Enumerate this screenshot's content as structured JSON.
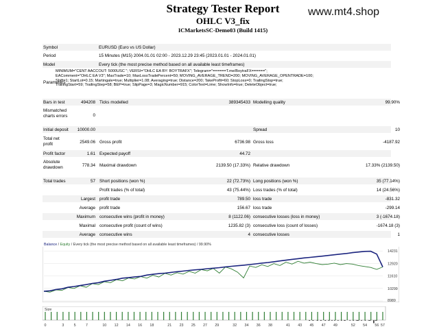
{
  "header": {
    "title": "Strategy Tester Report",
    "subtitle": "OHLC V3_fix",
    "server": "ICMarketsSC-Demo03 (Build 1415)",
    "watermark": "www.mt4.shop"
  },
  "info": {
    "symbol_label": "Symbol",
    "symbol_value": "EURUSD (Euro vs US Dollar)",
    "period_label": "Period",
    "period_value": "15 Minutes (M15) 2004.01.01 02:00 - 2023.12.29 23:45 (2023.01.01 - 2024.01.01)",
    "model_label": "Model",
    "model_value": "Every tick (the most precise method based on all available least timeframes)",
    "parameters_label": "Parameters",
    "parameters_lines": [
      "MINIMUM=\"CENT AACCOUT: 5000USC \"; VERSI=\"OHLC EA BY: BOYTRAFX\"; Telegram=\"======T.me/BoytraFX======\";",
      "EAComment=\"OHLC EA V3\"; MaxTrade=10; MaxLossTradePercent=50; MOVING_AVERAGE_TREND=200; MOVING_AVERAGE_OPENTRADE=100;",
      "Shift=1; StartLot=0.15; Martingale=true; Multiplier=1.08; Averaging=true; Distance=200; TakeProfit=60; StopLoss=0; TrailingStop=true;",
      "TrailingStart=59; TrailingStep=58; BEP=true; SlipPage=3; MagicNumber=915; ColorText=Lime; ShowInfo=true; DeleteObject=true;"
    ],
    "bars_label": "Bars in test",
    "bars_value": "494208",
    "ticks_label": "Ticks modelled",
    "ticks_value": "389345433",
    "quality_label": "Modelling quality",
    "quality_value": "99.90%",
    "mismatch_label_1": "Mismatched",
    "mismatch_label_2": "charts errors",
    "mismatch_value": "0"
  },
  "stats": {
    "deposit_label": "Initial deposit",
    "deposit_value": "10000.00",
    "spread_label": "Spread",
    "spread_value": "10",
    "netprofit_label_1": "Total net",
    "netprofit_label_2": "profit",
    "netprofit_value": "2549.06",
    "grossprofit_label": "Gross profit",
    "grossprofit_value": "6736.98",
    "grossloss_label": "Gross loss",
    "grossloss_value": "-4187.92",
    "pf_label": "Profit factor",
    "pf_value": "1.61",
    "payoff_label": "Expected payoff",
    "payoff_value": "44.72",
    "absdd_label_1": "Absolute",
    "absdd_label_2": "drawdown",
    "absdd_value": "778.34",
    "maxdd_label": "Maximal drawdown",
    "maxdd_value": "2139.50 (17.33%)",
    "reldd_label": "Relative drawdown",
    "reldd_value": "17.33% (2139.50)",
    "trades_label": "Total trades",
    "trades_value": "57",
    "short_label": "Short positions (won %)",
    "short_value": "22 (72.73%)",
    "long_label": "Long positions (won %)",
    "long_value": "35 (77.14%)",
    "ptrades_label": "Profit trades (% of total)",
    "ptrades_value": "43 (75.44%)",
    "ltrades_label": "Loss trades (% of total)",
    "ltrades_value": "14 (24.56%)",
    "largest_label": "Largest",
    "lp_label": "profit trade",
    "lp_value": "789.50",
    "ll_label": "loss trade",
    "ll_value": "-831.32",
    "average_label": "Average",
    "ap_label": "profit trade",
    "ap_value": "156.67",
    "al_label": "loss trade",
    "al_value": "-299.14",
    "maximum_label": "Maximum",
    "mcw_label": "consecutive wins (profit in money)",
    "mcw_value": "8 (1122.06)",
    "mcl_label": "consecutive losses (loss in money)",
    "mcl_value": "3 (-1674.18)",
    "maximal_label": "Maximal",
    "mcp_label": "consecutive profit (count of wins)",
    "mcp_value": "1235.82 (3)",
    "mcloss_label": "consecutive loss (count of losses)",
    "mcloss_value": "-1674.18 (3)",
    "average2_label": "Average",
    "acw_label": "consecutive wins",
    "acw_value": "4",
    "acl_label": "consecutive losses",
    "acl_value": "1"
  },
  "chart_data": {
    "type": "line",
    "header_balance": "Balance",
    "header_sep": " / ",
    "header_equity": "Equity",
    "header_rest": " / Every tick (the most precise method based on all available least timeframes) / 99.90%",
    "y_ticks": [
      "14231",
      "12920",
      "11610",
      "10299",
      "8989"
    ],
    "ylim": [
      8989,
      14600
    ],
    "x_ticks": [
      "0",
      "3",
      "5",
      "7",
      "10",
      "12",
      "14",
      "16",
      "18",
      "21",
      "23",
      "25",
      "27",
      "29",
      "32",
      "34",
      "36",
      "38",
      "41",
      "43",
      "45",
      "47",
      "49",
      "52",
      "54",
      "56",
      "57"
    ],
    "series": [
      {
        "name": "Balance",
        "color": "#1a237e",
        "values": [
          10000,
          10050,
          10180,
          10260,
          10420,
          10500,
          10600,
          10700,
          10820,
          10900,
          11050,
          11150,
          11250,
          11380,
          11430,
          11500,
          11560,
          11700,
          11780,
          11850,
          11900,
          11980,
          12050,
          12120,
          12190,
          12250,
          12300,
          12370,
          12420,
          12480,
          12560,
          12620,
          12680,
          12740,
          12800,
          12870,
          12950,
          13020,
          13100,
          13180,
          13260,
          13350,
          13420,
          13500,
          13560,
          13620,
          13690,
          13760,
          13830,
          13900,
          13970,
          14050,
          14120,
          14180,
          14200,
          13900,
          12549
        ]
      },
      {
        "name": "Equity",
        "color": "#2e7d32",
        "values": [
          10000,
          9900,
          10150,
          10100,
          10400,
          10300,
          10580,
          10420,
          10800,
          10700,
          11000,
          10900,
          11220,
          11100,
          11400,
          11300,
          11540,
          11380,
          11680,
          11500,
          11880,
          11700,
          11950,
          11800,
          12100,
          11900,
          12280,
          12150,
          12400,
          11900,
          12540,
          12350,
          12000,
          11400,
          12650,
          12500,
          12780,
          12600,
          12900,
          12700,
          13050,
          12850,
          13150,
          12950,
          13050,
          12900,
          12800,
          12850,
          12950,
          12800,
          12900,
          12850,
          12700,
          12600,
          12500,
          12300,
          12549
        ]
      }
    ]
  },
  "size": {
    "label": "Size"
  }
}
